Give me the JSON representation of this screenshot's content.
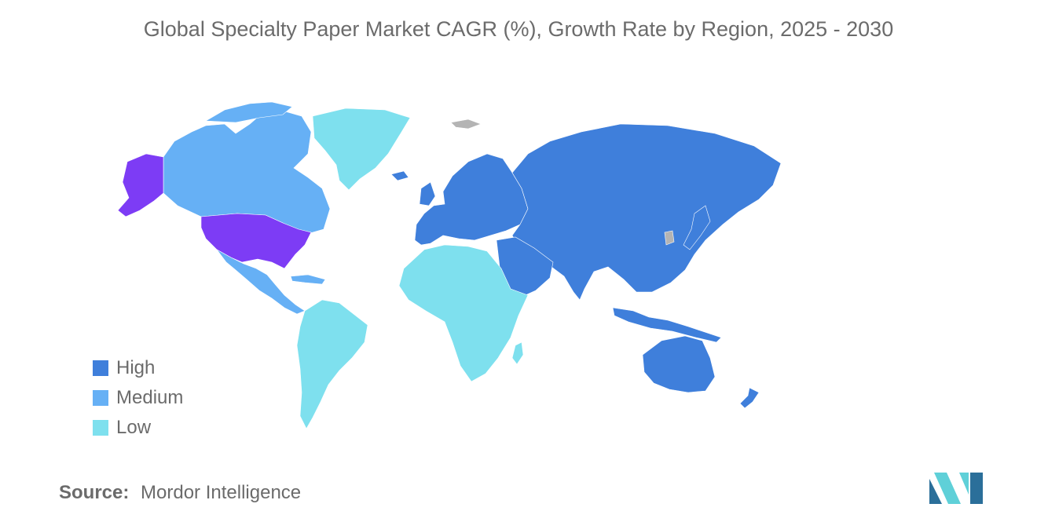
{
  "title": "Global Specialty Paper Market CAGR (%), Growth Rate by Region, 2025 - 2030",
  "legend": {
    "items": [
      {
        "label": "High",
        "color": "#3f7fdb"
      },
      {
        "label": "Medium",
        "color": "#66b0f5"
      },
      {
        "label": "Low",
        "color": "#7ee0ee"
      }
    ]
  },
  "map_colors": {
    "united_states": "#7d3cf5",
    "no_data": "#b4b4b4"
  },
  "source": {
    "prefix": "Source:",
    "name": "Mordor Intelligence"
  },
  "logo": {
    "icon": "mordor-intelligence-logo-icon",
    "color_dark": "#2b6f9a",
    "color_light": "#5fd0d8"
  }
}
